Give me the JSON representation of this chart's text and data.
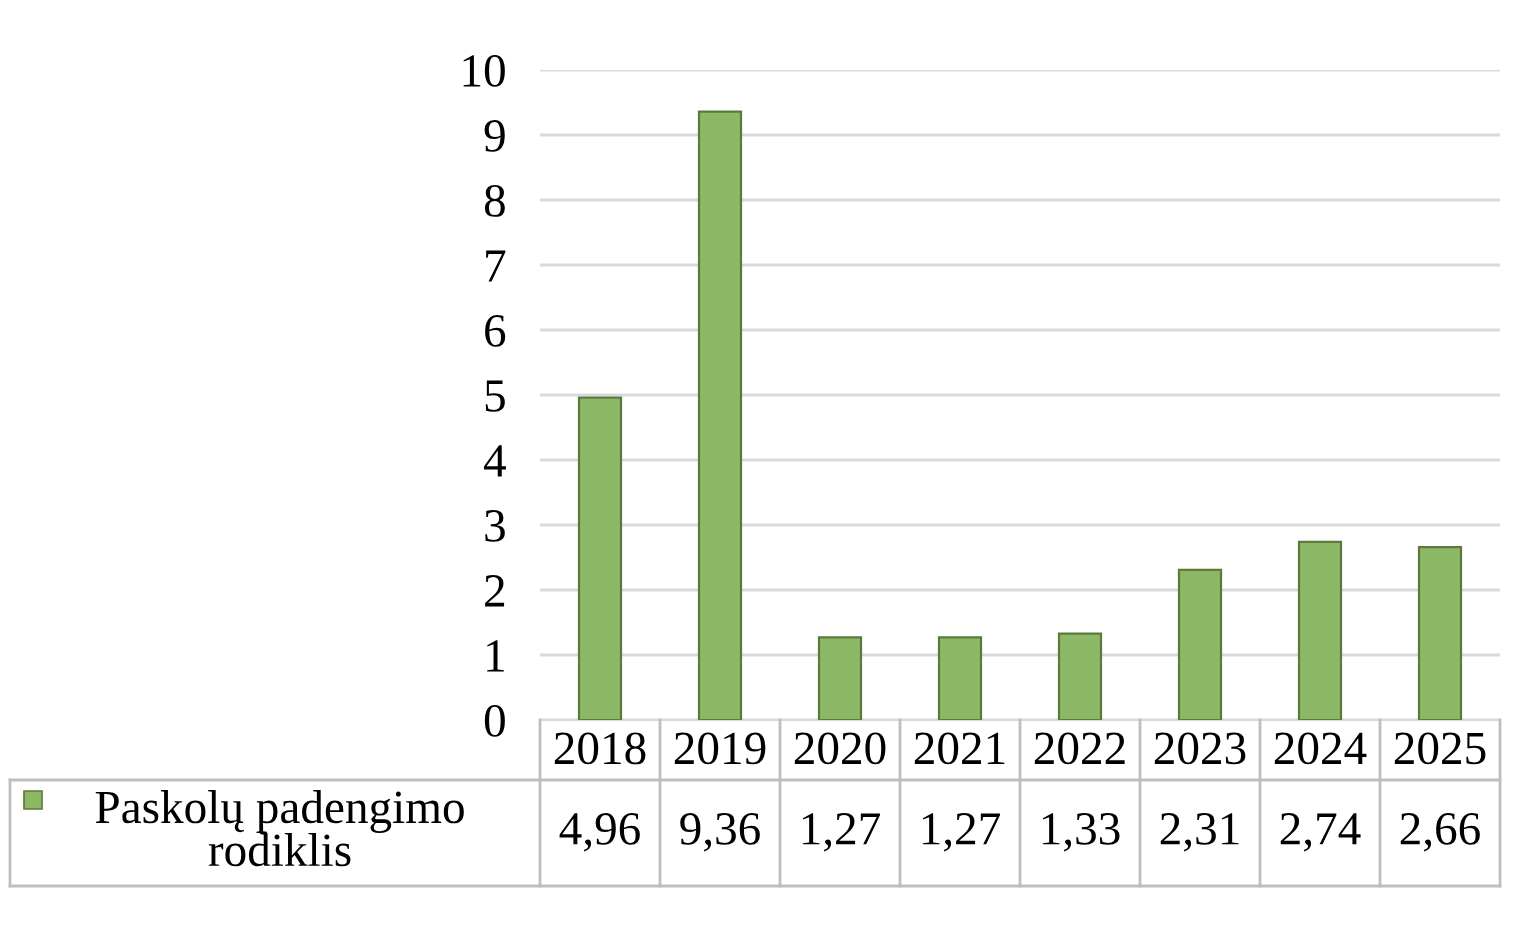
{
  "chart_data": {
    "type": "bar",
    "categories": [
      "2018",
      "2019",
      "2020",
      "2021",
      "2022",
      "2023",
      "2024",
      "2025"
    ],
    "series": [
      {
        "name": "Paskolų padengimo rodiklis",
        "color": "#8db866",
        "values": [
          4.96,
          9.36,
          1.27,
          1.27,
          1.33,
          2.31,
          2.74,
          2.66
        ],
        "value_labels": [
          "4,96",
          "9,36",
          "1,27",
          "1,27",
          "1,33",
          "2,31",
          "2,74",
          "2,66"
        ]
      }
    ],
    "ylim": [
      0,
      10
    ],
    "yticks": [
      0,
      1,
      2,
      3,
      4,
      5,
      6,
      7,
      8,
      9,
      10
    ],
    "grid": "y",
    "legend": "bottom left"
  }
}
